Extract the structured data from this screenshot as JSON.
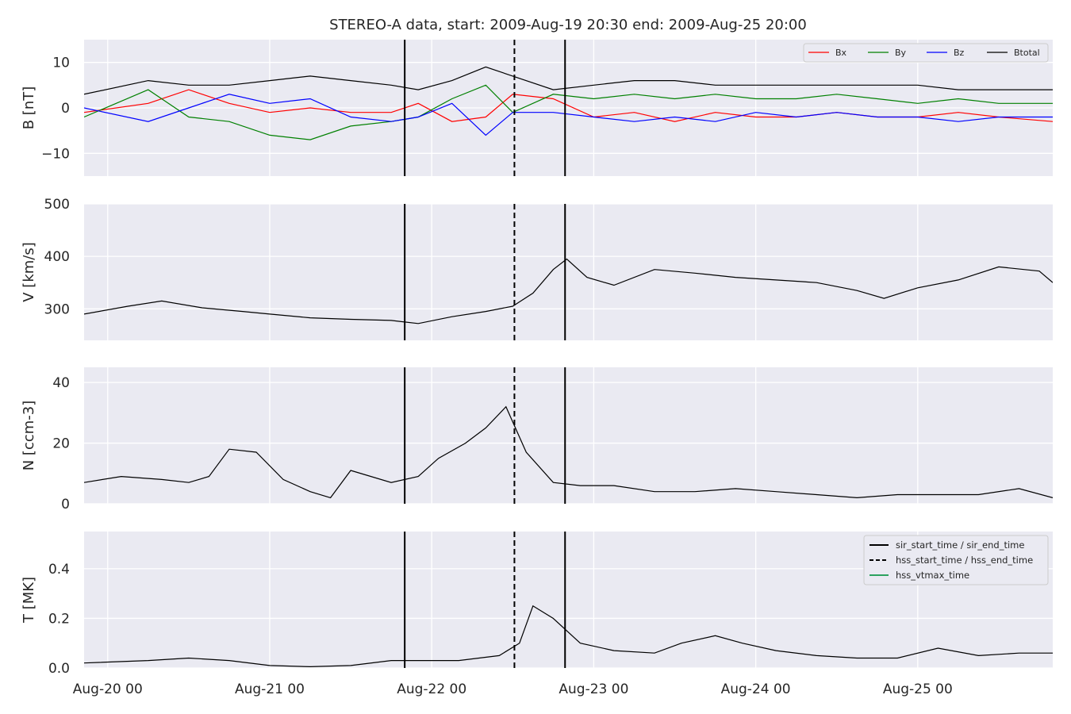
{
  "title": "STEREO-A data, start: 2009-Aug-19 20:30  end: 2009-Aug-25 20:00",
  "colors": {
    "panel_bg": "#eaeaf2",
    "grid": "#ffffff",
    "bx": "#ff0000",
    "by": "#008000",
    "bz": "#0000ff",
    "btotal": "#000000",
    "hss_vtmax": "#2ca25f"
  },
  "chart_data": [
    {
      "type": "line",
      "ylabel": "B [nT]",
      "ylim": [
        -15,
        15
      ],
      "yticks": [
        -10,
        0,
        10
      ],
      "ytick_labels": [
        "−10",
        "0",
        "10"
      ],
      "grid": true,
      "legend_placement": "top-right",
      "legend_layout": "row",
      "series": [
        {
          "name": "Bx",
          "color": "#ff0000",
          "x": [
            "2009-08-19T20:30",
            "2009-08-20T06:00",
            "2009-08-20T12:00",
            "2009-08-20T18:00",
            "2009-08-21T00:00",
            "2009-08-21T06:00",
            "2009-08-21T12:00",
            "2009-08-21T18:00",
            "2009-08-21T22:00",
            "2009-08-22T03:00",
            "2009-08-22T08:00",
            "2009-08-22T12:00",
            "2009-08-22T18:00",
            "2009-08-23T00:00",
            "2009-08-23T06:00",
            "2009-08-23T12:00",
            "2009-08-23T18:00",
            "2009-08-24T00:00",
            "2009-08-24T06:00",
            "2009-08-24T12:00",
            "2009-08-24T18:00",
            "2009-08-25T00:00",
            "2009-08-25T06:00",
            "2009-08-25T12:00",
            "2009-08-25T20:00"
          ],
          "y": [
            -1,
            1,
            4,
            1,
            -1,
            0,
            -1,
            -1,
            1,
            -3,
            -2,
            3,
            2,
            -2,
            -1,
            -3,
            -1,
            -2,
            -2,
            -1,
            -2,
            -2,
            -1,
            -2,
            -3
          ]
        },
        {
          "name": "By",
          "color": "#008000",
          "x": [
            "2009-08-19T20:30",
            "2009-08-20T06:00",
            "2009-08-20T12:00",
            "2009-08-20T18:00",
            "2009-08-21T00:00",
            "2009-08-21T06:00",
            "2009-08-21T12:00",
            "2009-08-21T18:00",
            "2009-08-21T22:00",
            "2009-08-22T03:00",
            "2009-08-22T08:00",
            "2009-08-22T12:00",
            "2009-08-22T18:00",
            "2009-08-23T00:00",
            "2009-08-23T06:00",
            "2009-08-23T12:00",
            "2009-08-23T18:00",
            "2009-08-24T00:00",
            "2009-08-24T06:00",
            "2009-08-24T12:00",
            "2009-08-24T18:00",
            "2009-08-25T00:00",
            "2009-08-25T06:00",
            "2009-08-25T12:00",
            "2009-08-25T20:00"
          ],
          "y": [
            -2,
            4,
            -2,
            -3,
            -6,
            -7,
            -4,
            -3,
            -2,
            2,
            5,
            -1,
            3,
            2,
            3,
            2,
            3,
            2,
            2,
            3,
            2,
            1,
            2,
            1,
            1
          ]
        },
        {
          "name": "Bz",
          "color": "#0000ff",
          "x": [
            "2009-08-19T20:30",
            "2009-08-20T06:00",
            "2009-08-20T12:00",
            "2009-08-20T18:00",
            "2009-08-21T00:00",
            "2009-08-21T06:00",
            "2009-08-21T12:00",
            "2009-08-21T18:00",
            "2009-08-21T22:00",
            "2009-08-22T03:00",
            "2009-08-22T08:00",
            "2009-08-22T12:00",
            "2009-08-22T18:00",
            "2009-08-23T00:00",
            "2009-08-23T06:00",
            "2009-08-23T12:00",
            "2009-08-23T18:00",
            "2009-08-24T00:00",
            "2009-08-24T06:00",
            "2009-08-24T12:00",
            "2009-08-24T18:00",
            "2009-08-25T00:00",
            "2009-08-25T06:00",
            "2009-08-25T12:00",
            "2009-08-25T20:00"
          ],
          "y": [
            0,
            -3,
            0,
            3,
            1,
            2,
            -2,
            -3,
            -2,
            1,
            -6,
            -1,
            -1,
            -2,
            -3,
            -2,
            -3,
            -1,
            -2,
            -1,
            -2,
            -2,
            -3,
            -2,
            -2
          ]
        },
        {
          "name": "Btotal",
          "color": "#000000",
          "x": [
            "2009-08-19T20:30",
            "2009-08-20T06:00",
            "2009-08-20T12:00",
            "2009-08-20T18:00",
            "2009-08-21T00:00",
            "2009-08-21T06:00",
            "2009-08-21T12:00",
            "2009-08-21T18:00",
            "2009-08-21T22:00",
            "2009-08-22T03:00",
            "2009-08-22T08:00",
            "2009-08-22T12:00",
            "2009-08-22T18:00",
            "2009-08-23T00:00",
            "2009-08-23T06:00",
            "2009-08-23T12:00",
            "2009-08-23T18:00",
            "2009-08-24T00:00",
            "2009-08-24T06:00",
            "2009-08-24T12:00",
            "2009-08-24T18:00",
            "2009-08-25T00:00",
            "2009-08-25T06:00",
            "2009-08-25T12:00",
            "2009-08-25T20:00"
          ],
          "y": [
            3,
            6,
            5,
            5,
            6,
            7,
            6,
            5,
            4,
            6,
            9,
            7,
            4,
            5,
            6,
            6,
            5,
            5,
            5,
            5,
            5,
            5,
            4,
            4,
            4
          ]
        }
      ]
    },
    {
      "type": "line",
      "ylabel": "V [km/s]",
      "ylim": [
        240,
        500
      ],
      "yticks": [
        300,
        400,
        500
      ],
      "ytick_labels": [
        "300",
        "400",
        "500"
      ],
      "grid": true,
      "series": [
        {
          "color": "#000000",
          "x": [
            "2009-08-19T20:30",
            "2009-08-20T03:00",
            "2009-08-20T08:00",
            "2009-08-20T14:00",
            "2009-08-20T20:00",
            "2009-08-21T00:00",
            "2009-08-21T06:00",
            "2009-08-21T12:00",
            "2009-08-21T18:00",
            "2009-08-21T22:00",
            "2009-08-22T03:00",
            "2009-08-22T08:00",
            "2009-08-22T12:00",
            "2009-08-22T15:00",
            "2009-08-22T18:00",
            "2009-08-22T20:00",
            "2009-08-22T23:00",
            "2009-08-23T03:00",
            "2009-08-23T09:00",
            "2009-08-23T15:00",
            "2009-08-23T21:00",
            "2009-08-24T03:00",
            "2009-08-24T09:00",
            "2009-08-24T15:00",
            "2009-08-24T19:00",
            "2009-08-25T00:00",
            "2009-08-25T06:00",
            "2009-08-25T12:00",
            "2009-08-25T18:00",
            "2009-08-25T20:00"
          ],
          "y": [
            290,
            305,
            315,
            302,
            295,
            290,
            283,
            280,
            278,
            272,
            285,
            295,
            305,
            330,
            375,
            395,
            360,
            345,
            375,
            368,
            360,
            355,
            350,
            335,
            320,
            340,
            355,
            380,
            372,
            350
          ]
        }
      ]
    },
    {
      "type": "line",
      "ylabel": "N [ccm-3]",
      "ylim": [
        0,
        45
      ],
      "yticks": [
        0,
        20,
        40
      ],
      "ytick_labels": [
        "0",
        "20",
        "40"
      ],
      "grid": true,
      "series": [
        {
          "color": "#000000",
          "x": [
            "2009-08-19T20:30",
            "2009-08-20T02:00",
            "2009-08-20T08:00",
            "2009-08-20T12:00",
            "2009-08-20T15:00",
            "2009-08-20T18:00",
            "2009-08-20T22:00",
            "2009-08-21T02:00",
            "2009-08-21T06:00",
            "2009-08-21T09:00",
            "2009-08-21T12:00",
            "2009-08-21T18:00",
            "2009-08-21T22:00",
            "2009-08-22T01:00",
            "2009-08-22T05:00",
            "2009-08-22T08:00",
            "2009-08-22T11:00",
            "2009-08-22T14:00",
            "2009-08-22T18:00",
            "2009-08-22T22:00",
            "2009-08-23T03:00",
            "2009-08-23T09:00",
            "2009-08-23T15:00",
            "2009-08-23T21:00",
            "2009-08-24T03:00",
            "2009-08-24T09:00",
            "2009-08-24T15:00",
            "2009-08-24T21:00",
            "2009-08-25T03:00",
            "2009-08-25T09:00",
            "2009-08-25T15:00",
            "2009-08-25T20:00"
          ],
          "y": [
            7,
            9,
            8,
            7,
            9,
            18,
            17,
            8,
            4,
            2,
            11,
            7,
            9,
            15,
            20,
            25,
            32,
            17,
            7,
            6,
            6,
            4,
            4,
            5,
            4,
            3,
            2,
            3,
            3,
            3,
            5,
            2
          ]
        }
      ]
    },
    {
      "type": "line",
      "ylabel": "T [MK]",
      "ylim": [
        0,
        0.55
      ],
      "yticks": [
        0.0,
        0.2,
        0.4
      ],
      "ytick_labels": [
        "0.0",
        "0.2",
        "0.4"
      ],
      "grid": true,
      "legend_placement": "top-right",
      "legend_layout": "column",
      "xticks": [
        "2009-08-20T00:00",
        "2009-08-21T00:00",
        "2009-08-22T00:00",
        "2009-08-23T00:00",
        "2009-08-24T00:00",
        "2009-08-25T00:00"
      ],
      "xtick_labels": [
        "Aug-20 00",
        "Aug-21 00",
        "Aug-22 00",
        "Aug-23 00",
        "Aug-24 00",
        "Aug-25 00"
      ],
      "series": [
        {
          "color": "#000000",
          "x": [
            "2009-08-19T20:30",
            "2009-08-20T06:00",
            "2009-08-20T12:00",
            "2009-08-20T18:00",
            "2009-08-21T00:00",
            "2009-08-21T06:00",
            "2009-08-21T12:00",
            "2009-08-21T18:00",
            "2009-08-21T22:00",
            "2009-08-22T04:00",
            "2009-08-22T10:00",
            "2009-08-22T13:00",
            "2009-08-22T15:00",
            "2009-08-22T18:00",
            "2009-08-22T22:00",
            "2009-08-23T03:00",
            "2009-08-23T09:00",
            "2009-08-23T13:00",
            "2009-08-23T18:00",
            "2009-08-23T22:00",
            "2009-08-24T03:00",
            "2009-08-24T09:00",
            "2009-08-24T15:00",
            "2009-08-24T21:00",
            "2009-08-25T03:00",
            "2009-08-25T09:00",
            "2009-08-25T15:00",
            "2009-08-25T20:00"
          ],
          "y": [
            0.02,
            0.03,
            0.04,
            0.03,
            0.01,
            0.005,
            0.01,
            0.03,
            0.03,
            0.03,
            0.05,
            0.1,
            0.25,
            0.2,
            0.1,
            0.07,
            0.06,
            0.1,
            0.13,
            0.1,
            0.07,
            0.05,
            0.04,
            0.04,
            0.08,
            0.05,
            0.06,
            0.06
          ]
        }
      ]
    }
  ],
  "event_lines": [
    {
      "time": "2009-08-21T20:00",
      "style": "solid"
    },
    {
      "time": "2009-08-22T12:15",
      "style": "dashed"
    },
    {
      "time": "2009-08-22T19:45",
      "style": "solid"
    }
  ],
  "event_legend": [
    {
      "label": "sir_start_time / sir_end_time",
      "style": "solid",
      "color": "#000000"
    },
    {
      "label": "hss_start_time / hss_end_time",
      "style": "dashed",
      "color": "#000000"
    },
    {
      "label": "hss_vtmax_time",
      "style": "solid",
      "color": "#2ca25f"
    }
  ]
}
